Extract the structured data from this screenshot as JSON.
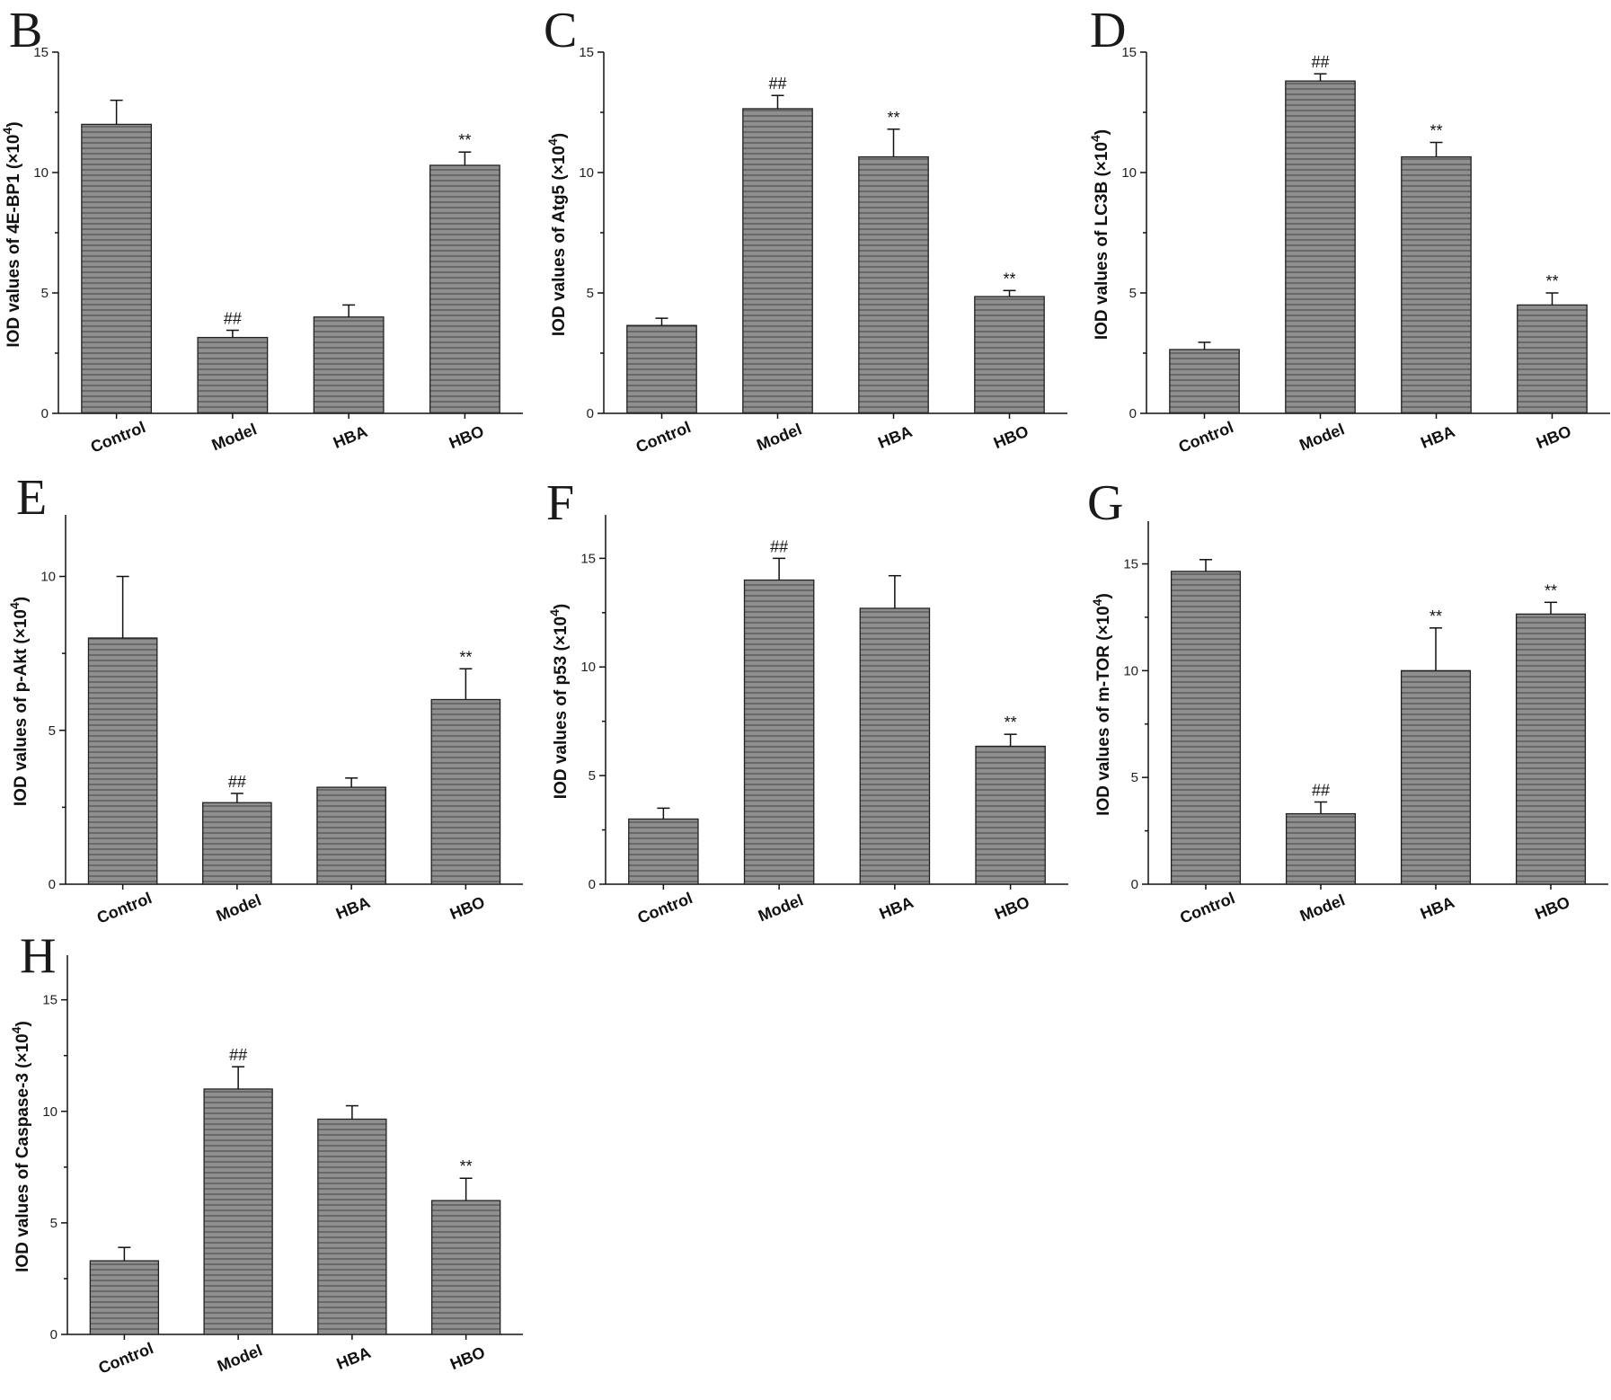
{
  "chart_data": [
    {
      "panel": "B",
      "type": "bar",
      "categories": [
        "Control",
        "Model",
        "HBA",
        "HBO"
      ],
      "values": [
        12.0,
        3.15,
        4.0,
        10.3
      ],
      "errors": [
        1.0,
        0.3,
        0.5,
        0.55
      ],
      "significance": [
        "",
        "##",
        "",
        "**"
      ],
      "ylabel": "IOD values of 4E-BP1 (×10",
      "ylabel_sup": "4",
      "ylabel_close": ")",
      "ylim": [
        0,
        15
      ],
      "yticks": [
        0,
        5,
        10,
        15
      ],
      "yticks_labels": [
        "0",
        "5",
        "10",
        "15"
      ]
    },
    {
      "panel": "C",
      "type": "bar",
      "categories": [
        "Control",
        "Model",
        "HBA",
        "HBO"
      ],
      "values": [
        3.65,
        12.65,
        10.65,
        4.85
      ],
      "errors": [
        0.3,
        0.55,
        1.15,
        0.25
      ],
      "significance": [
        "",
        "##",
        "**",
        "**"
      ],
      "ylabel": "IOD values of Atg5 (×10",
      "ylabel_sup": "4",
      "ylabel_close": ")",
      "ylim": [
        0,
        15
      ],
      "yticks": [
        0,
        5,
        10,
        15
      ],
      "yticks_labels": [
        "0",
        "5",
        "10",
        "15"
      ]
    },
    {
      "panel": "D",
      "type": "bar",
      "categories": [
        "Control",
        "Model",
        "HBA",
        "HBO"
      ],
      "values": [
        2.65,
        13.8,
        10.65,
        4.5
      ],
      "errors": [
        0.3,
        0.3,
        0.6,
        0.5
      ],
      "significance": [
        "",
        "##",
        "**",
        "**"
      ],
      "ylabel": "IOD values of LC3B (×10",
      "ylabel_sup": "4",
      "ylabel_close": ")",
      "ylim": [
        0,
        15
      ],
      "yticks": [
        0,
        5,
        10,
        15
      ],
      "yticks_labels": [
        "0",
        "5",
        "10",
        "15"
      ]
    },
    {
      "panel": "E",
      "type": "bar",
      "categories": [
        "Control",
        "Model",
        "HBA",
        "HBO"
      ],
      "values": [
        8.0,
        2.65,
        3.15,
        6.0
      ],
      "errors": [
        2.0,
        0.3,
        0.3,
        1.0
      ],
      "significance": [
        "",
        "##",
        "",
        "**"
      ],
      "ylabel": "IOD values of p-Akt (×10",
      "ylabel_sup": "4",
      "ylabel_close": ")",
      "ylim": [
        0,
        12
      ],
      "yticks": [
        0,
        5,
        10
      ],
      "yticks_labels": [
        "0",
        "5",
        "10"
      ]
    },
    {
      "panel": "F",
      "type": "bar",
      "categories": [
        "Control",
        "Model",
        "HBA",
        "HBO"
      ],
      "values": [
        3.0,
        14.0,
        12.7,
        6.35
      ],
      "errors": [
        0.5,
        1.0,
        1.5,
        0.55
      ],
      "significance": [
        "",
        "##",
        "",
        "**"
      ],
      "ylabel": "IOD values of p53 (×10",
      "ylabel_sup": "4",
      "ylabel_close": ")",
      "ylim": [
        0,
        17
      ],
      "yticks": [
        0,
        5,
        10,
        15
      ],
      "yticks_labels": [
        "0",
        "5",
        "10",
        "15"
      ]
    },
    {
      "panel": "G",
      "type": "bar",
      "categories": [
        "Control",
        "Model",
        "HBA",
        "HBO"
      ],
      "values": [
        14.65,
        3.3,
        10.0,
        12.65
      ],
      "errors": [
        0.55,
        0.55,
        2.0,
        0.55
      ],
      "significance": [
        "",
        "##",
        "**",
        "**"
      ],
      "ylabel": "IOD values of m-TOR (×10",
      "ylabel_sup": "4",
      "ylabel_close": ")",
      "ylim": [
        0,
        17
      ],
      "yticks": [
        0,
        5,
        10,
        15
      ],
      "yticks_labels": [
        "0",
        "5",
        "10",
        "15"
      ]
    },
    {
      "panel": "H",
      "type": "bar",
      "categories": [
        "Control",
        "Model",
        "HBA",
        "HBO"
      ],
      "values": [
        3.3,
        11.0,
        9.65,
        6.0
      ],
      "errors": [
        0.6,
        1.0,
        0.6,
        1.0
      ],
      "significance": [
        "",
        "##",
        "",
        "**"
      ],
      "ylabel": "IOD values of Caspase-3 (×10",
      "ylabel_sup": "4",
      "ylabel_close": ")",
      "ylim": [
        0,
        17
      ],
      "yticks": [
        0,
        5,
        10,
        15
      ],
      "yticks_labels": [
        "0",
        "5",
        "10",
        "15"
      ]
    }
  ],
  "colors": {
    "bar_fill": "#8f8f8f",
    "hatch_line": "#3a3a3a",
    "axis": "#111111"
  },
  "bar_pattern": "horizontal-lines"
}
